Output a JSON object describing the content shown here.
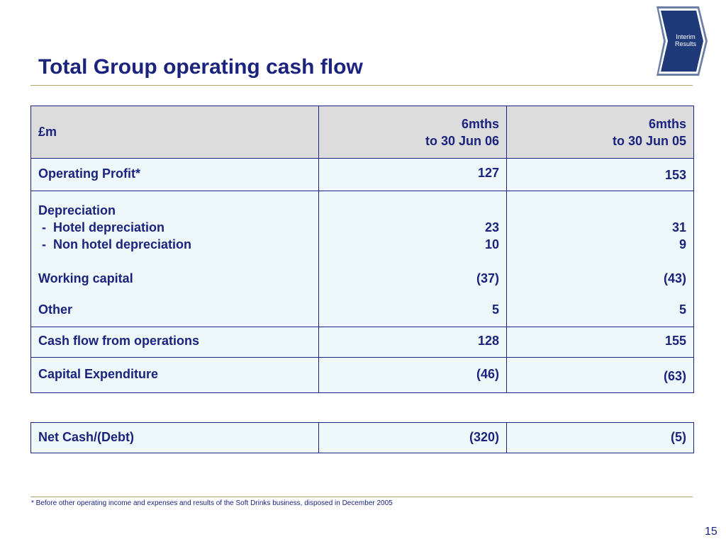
{
  "badge": {
    "line1": "Interim",
    "line2": "Results",
    "color": "#1f3a78"
  },
  "title": "Total Group operating cash flow",
  "table": {
    "header": {
      "label": "£m",
      "col1_line1": "6mths",
      "col1_line2": "to 30 Jun 06",
      "col2_line1": "6mths",
      "col2_line2": "to 30 Jun 05"
    },
    "operating_profit": {
      "label": "Operating Profit*",
      "v06": "127",
      "v05": "153"
    },
    "depreciation": {
      "label": "Depreciation",
      "hotel_label": " -  Hotel depreciation",
      "hotel_v06": "23",
      "hotel_v05": "31",
      "nonhotel_label": " -  Non hotel depreciation",
      "nonhotel_v06": "10",
      "nonhotel_v05": "9"
    },
    "working_capital": {
      "label": "Working capital",
      "v06": "(37)",
      "v05": "(43)"
    },
    "other": {
      "label": "Other",
      "v06": "5",
      "v05": "5"
    },
    "cash_flow": {
      "label": "Cash flow from operations",
      "v06": "128",
      "v05": "155"
    },
    "capex": {
      "label": "Capital Expenditure",
      "v06": "(46)",
      "v05": "(63)"
    }
  },
  "net_cash": {
    "label": "Net Cash/(Debt)",
    "v06": "(320)",
    "v05": "(5)"
  },
  "footnote": "* Before other operating income and expenses and results of the Soft Drinks business, disposed in December 2005",
  "page_number": "15",
  "colors": {
    "text": "#1a237e",
    "rule": "#b7a36a",
    "cell_bg": "#eef8fa",
    "header_bg": "#dcdcdc"
  }
}
